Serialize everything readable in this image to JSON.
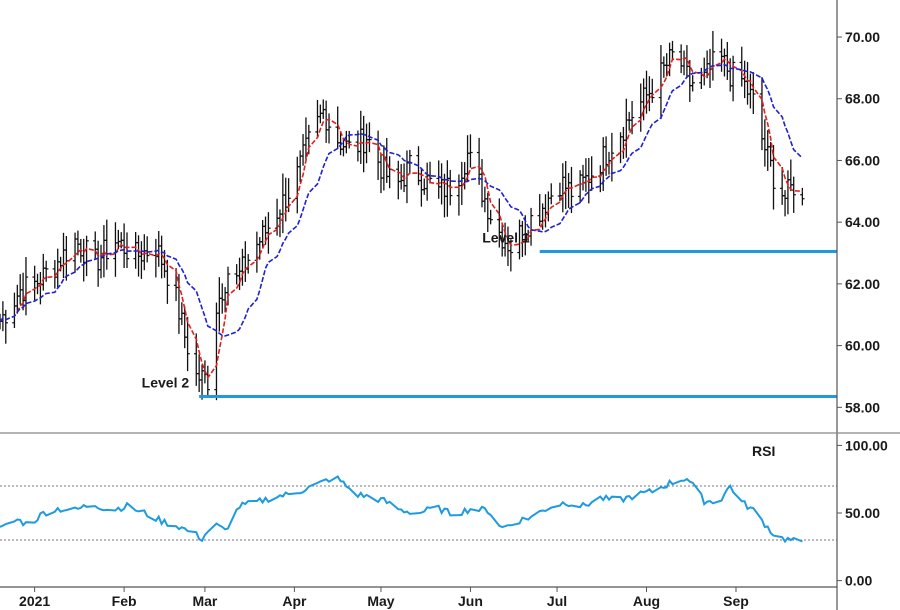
{
  "chart_data": [
    {
      "type": "ohlc",
      "xlabel": "",
      "ylabel": "",
      "ylim": [
        57.2,
        71.2
      ],
      "yticks": [
        "70.00",
        "68.00",
        "66.00",
        "64.00",
        "62.00",
        "60.00",
        "58.00"
      ],
      "ytick_values": [
        70,
        68,
        66,
        64,
        62,
        60,
        58
      ],
      "months": [
        {
          "label": "2021",
          "day": 0
        },
        {
          "label": "Feb",
          "day": 31
        },
        {
          "label": "Mar",
          "day": 59
        },
        {
          "label": "Apr",
          "day": 90
        },
        {
          "label": "May",
          "day": 120
        },
        {
          "label": "Jun",
          "day": 151
        },
        {
          "label": "Jul",
          "day": 181
        },
        {
          "label": "Aug",
          "day": 212
        },
        {
          "label": "Sep",
          "day": 243
        }
      ],
      "xlim": [
        -12,
        278
      ],
      "close_series": {
        "day": [
          -12,
          -5,
          0,
          7,
          14,
          21,
          28,
          35,
          42,
          48,
          52,
          56,
          60,
          63,
          67,
          70,
          75,
          80,
          85,
          90,
          95,
          100,
          105,
          110,
          115,
          120,
          125,
          130,
          135,
          140,
          145,
          150,
          155,
          160,
          165,
          170,
          175,
          178,
          182,
          187,
          192,
          197,
          202,
          207,
          212,
          217,
          222,
          227,
          232,
          237,
          241,
          245,
          249,
          252,
          256,
          260,
          263,
          266
        ],
        "close": [
          60.8,
          61.8,
          62.0,
          62.6,
          63.4,
          62.7,
          63.4,
          62.9,
          63.2,
          61.9,
          60.3,
          59.0,
          58.9,
          61.3,
          62.4,
          62.1,
          63.0,
          63.7,
          64.5,
          65.3,
          66.6,
          67.6,
          66.7,
          66.3,
          66.8,
          65.8,
          65.1,
          65.8,
          65.4,
          65.0,
          65.2,
          66.2,
          65.0,
          63.8,
          63.2,
          63.9,
          64.4,
          64.8,
          65.3,
          64.9,
          65.5,
          66.1,
          66.8,
          67.5,
          68.1,
          68.8,
          69.5,
          68.5,
          68.6,
          69.4,
          68.8,
          68.6,
          67.9,
          66.7,
          65.5,
          64.8,
          65.2,
          64.6
        ]
      },
      "series": [
        {
          "color": "#e02020",
          "style": "dashed",
          "window": 5
        },
        {
          "color": "#2020d0",
          "style": "dashed",
          "window": 14
        }
      ],
      "levels": [
        {
          "label": "Level 1",
          "value": 63.05,
          "start_day": 175
        },
        {
          "label": "Level 2",
          "value": 58.35,
          "start_day": 57
        }
      ],
      "level_color": "#1e9be0"
    },
    {
      "type": "line",
      "title": "RSI",
      "ylim": [
        -4,
        104
      ],
      "yticks": [
        "100.00",
        "50.00",
        "0.00"
      ],
      "ytick_values": [
        100,
        50,
        0
      ],
      "ref_lines": [
        70,
        30
      ],
      "color": "#1e9be0",
      "x": [
        -12,
        -6,
        -2,
        3,
        8,
        14,
        20,
        26,
        32,
        38,
        44,
        50,
        55,
        58,
        62,
        66,
        71,
        77,
        83,
        89,
        94,
        99,
        104,
        108,
        111,
        116,
        121,
        127,
        133,
        139,
        145,
        151,
        157,
        162,
        167,
        172,
        178,
        184,
        190,
        196,
        202,
        208,
        214,
        220,
        226,
        232,
        237,
        241,
        245,
        249,
        253,
        257,
        262,
        266
      ],
      "y": [
        38,
        45,
        41,
        50,
        53,
        52,
        57,
        52,
        55,
        50,
        44,
        40,
        35,
        31,
        42,
        37,
        55,
        58,
        62,
        64,
        68,
        72,
        77,
        70,
        64,
        62,
        59,
        52,
        50,
        54,
        49,
        53,
        52,
        39,
        44,
        47,
        54,
        58,
        55,
        61,
        59,
        63,
        66,
        72,
        76,
        59,
        58,
        70,
        58,
        52,
        42,
        32,
        30,
        27
      ]
    }
  ]
}
